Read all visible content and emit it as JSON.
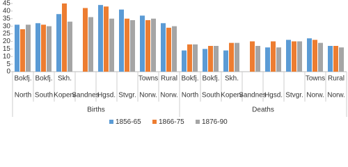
{
  "chart_data": {
    "type": "bar",
    "categories": [
      [
        "Bokfj.",
        "North"
      ],
      [
        "Bokfj.",
        "South"
      ],
      [
        "Skh.",
        "Koperv"
      ],
      [
        null,
        "Sandnes"
      ],
      [
        null,
        "Hgsd."
      ],
      [
        null,
        "Stvgr."
      ],
      [
        "Towns",
        "Norw."
      ],
      [
        "Rural",
        "Norw."
      ],
      [
        "Bokfj.",
        "North"
      ],
      [
        "Bokfj.",
        "South"
      ],
      [
        "Skh.",
        "Koperv"
      ],
      [
        null,
        "Sandnes"
      ],
      [
        null,
        "Hgsd."
      ],
      [
        null,
        "Stvgr."
      ],
      [
        "Towns",
        "Norw."
      ],
      [
        "Rural",
        "Norw."
      ]
    ],
    "groups": [
      {
        "label": "Births",
        "span": 8
      },
      {
        "label": "Deaths",
        "span": 8
      }
    ],
    "series": [
      {
        "name": "1856-65",
        "color": "#5b9bd5",
        "values": [
          31,
          32,
          38,
          null,
          44,
          41,
          37,
          32,
          14,
          15,
          14,
          null,
          16,
          21,
          22,
          17
        ]
      },
      {
        "name": "1866-75",
        "color": "#ed7d31",
        "values": [
          28,
          31,
          45,
          42,
          43,
          35,
          34,
          29,
          18,
          17,
          19,
          20,
          20,
          20,
          21,
          17
        ]
      },
      {
        "name": "1876-90",
        "color": "#a5a5a5",
        "values": [
          31,
          30,
          33,
          36,
          35,
          34,
          35,
          30,
          18,
          17,
          19,
          17,
          16,
          20,
          19,
          16
        ]
      }
    ],
    "ylim": [
      0,
      45
    ],
    "yticks": [
      0,
      5,
      10,
      15,
      20,
      25,
      30,
      35,
      40,
      45
    ],
    "grid": false,
    "legend": "bottom"
  }
}
